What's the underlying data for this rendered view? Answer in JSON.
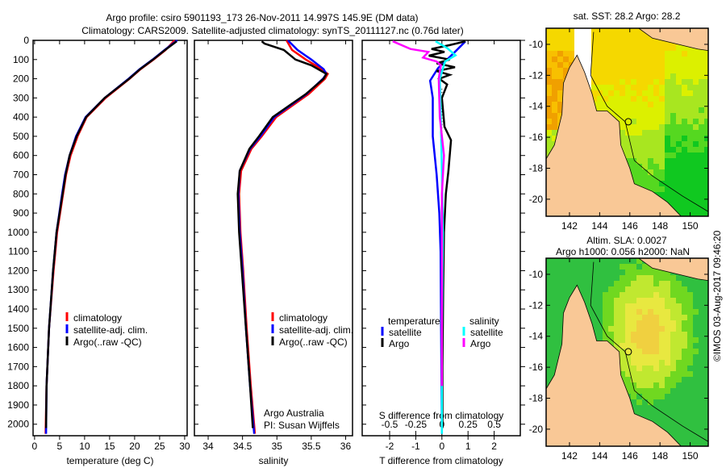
{
  "title_line1": "Argo profile: csiro 5901193_173 26-Nov-2011 14.997S 145.9E (DM data)",
  "title_line2": "Climatology: CARS2009. Satellite-adjusted climatology: synTS_20111127.nc (0.76d later)",
  "credit": "©IMOS 03-Aug-2017 09:46:20",
  "depth_ticks": [
    0,
    100,
    200,
    300,
    400,
    500,
    600,
    700,
    800,
    900,
    1000,
    1100,
    1200,
    1300,
    1400,
    1500,
    1600,
    1700,
    1800,
    1900,
    2000
  ],
  "chart_data": [
    {
      "type": "line",
      "id": "temperature",
      "xlabel": "temperature (deg C)",
      "ylabel": "depth",
      "xlim": [
        -0.3,
        30.5
      ],
      "ylim": [
        2060,
        0
      ],
      "xticks": [
        0,
        5,
        10,
        15,
        20,
        25,
        30
      ],
      "legend": [
        "climatology",
        "satellite-adj. clim.",
        "Argo(..raw -QC)"
      ],
      "legend_placement": "lower-center",
      "series": [
        {
          "name": "climatology",
          "color": "#ff0000",
          "depth": [
            0,
            50,
            100,
            150,
            200,
            300,
            400,
            500,
            600,
            700,
            800,
            1000,
            1200,
            1500,
            1800,
            2050
          ],
          "values": [
            28.0,
            26.2,
            23.8,
            21.2,
            19.0,
            14.2,
            10.4,
            8.6,
            7.2,
            6.3,
            5.7,
            4.5,
            3.8,
            2.9,
            2.4,
            2.2
          ]
        },
        {
          "name": "satellite-adj. clim.",
          "color": "#0000ff",
          "depth": [
            0,
            50,
            100,
            150,
            200,
            300,
            400,
            500,
            600,
            700,
            800,
            1000,
            1200,
            1500,
            1800,
            2050
          ],
          "values": [
            28.5,
            26.0,
            23.6,
            21.0,
            18.8,
            14.0,
            10.2,
            8.3,
            7.0,
            6.1,
            5.5,
            4.4,
            3.7,
            2.9,
            2.4,
            2.3
          ]
        },
        {
          "name": "Argo(..raw -QC)",
          "color": "#000000",
          "depth": [
            5,
            50,
            100,
            150,
            200,
            300,
            400,
            500,
            600,
            700,
            800,
            1000,
            1200,
            1500,
            1800,
            2020
          ],
          "values": [
            28.4,
            26.1,
            23.7,
            21.1,
            18.9,
            14.0,
            10.3,
            8.4,
            7.0,
            6.2,
            5.6,
            4.4,
            3.7,
            2.9,
            2.4,
            2.3
          ]
        }
      ]
    },
    {
      "type": "line",
      "id": "salinity",
      "xlabel": "salinity",
      "xlim": [
        33.8,
        36.1
      ],
      "ylim": [
        2060,
        0
      ],
      "xticks": [
        34,
        34.5,
        35,
        35.5,
        36
      ],
      "xticklabels": [
        "34",
        "34.5",
        "35",
        "35.5",
        "36"
      ],
      "legend": [
        "climatology",
        "satellite-adj. clim.",
        "Argo(..raw -QC)"
      ],
      "annotation": [
        "Argo Australia",
        "PI: Susan Wijffels"
      ],
      "series": [
        {
          "name": "climatology",
          "color": "#ff0000",
          "depth": [
            0,
            50,
            100,
            150,
            175,
            200,
            280,
            400,
            500,
            565,
            680,
            800,
            1000,
            1200,
            1500,
            1800,
            2050
          ],
          "values": [
            35.14,
            35.22,
            35.42,
            35.65,
            35.74,
            35.7,
            35.46,
            34.99,
            34.78,
            34.63,
            34.48,
            34.45,
            34.47,
            34.51,
            34.56,
            34.62,
            34.68
          ]
        },
        {
          "name": "satellite-adj. clim.",
          "color": "#0000ff",
          "depth": [
            0,
            50,
            100,
            150,
            175,
            200,
            280,
            400,
            500,
            565,
            680,
            800,
            1000,
            1200,
            1500,
            1800,
            2050
          ],
          "values": [
            35.16,
            35.3,
            35.5,
            35.68,
            35.72,
            35.67,
            35.43,
            34.96,
            34.76,
            34.61,
            34.46,
            34.44,
            34.46,
            34.5,
            34.55,
            34.61,
            34.67
          ]
        },
        {
          "name": "Argo(..raw -QC)",
          "color": "#000000",
          "depth": [
            5,
            17,
            50,
            100,
            130,
            175,
            200,
            280,
            400,
            500,
            565,
            680,
            800,
            1000,
            1200,
            1500,
            1800,
            2020
          ],
          "values": [
            34.78,
            34.82,
            35.1,
            35.27,
            35.5,
            35.72,
            35.68,
            35.42,
            34.94,
            34.74,
            34.6,
            34.46,
            34.43,
            34.45,
            34.49,
            34.55,
            34.61,
            34.65
          ]
        }
      ]
    },
    {
      "type": "line",
      "id": "differences",
      "xlabel": "T difference from climatology",
      "xlabel2": "S difference from climatology",
      "xlim": [
        -3.05,
        3.0
      ],
      "ylim": [
        2060,
        0
      ],
      "xticks": [
        -2,
        -1,
        0,
        1,
        2
      ],
      "sticks": [
        -0.5,
        -0.25,
        0,
        0.25,
        0.5
      ],
      "sticklabels": [
        "-0.5",
        "-0.25",
        "0",
        "0.25",
        "0.5"
      ],
      "legend_headers": [
        "temperature",
        "salinity"
      ],
      "legend": [
        "satellite",
        "Argo",
        "satellite",
        "Argo"
      ],
      "series": [
        {
          "name": "temperature satellite",
          "color": "#0000ff",
          "var": "T",
          "depth": [
            5,
            60,
            145,
            210,
            300,
            500,
            700,
            900,
            1100,
            1500,
            2050
          ],
          "values": [
            0.9,
            0.5,
            -0.15,
            -0.45,
            -0.35,
            -0.35,
            -0.2,
            -0.1,
            -0.05,
            -0.03,
            0.0
          ]
        },
        {
          "name": "temperature Argo",
          "color": "#000000",
          "var": "T",
          "depth": [
            5,
            25,
            45,
            60,
            80,
            100,
            120,
            140,
            160,
            180,
            200,
            230,
            300,
            450,
            520,
            600,
            680,
            800,
            1000,
            1300,
            1700,
            2020
          ],
          "values": [
            0.9,
            0.3,
            -0.4,
            0.1,
            -0.5,
            0.3,
            -0.2,
            0.5,
            -0.2,
            0.3,
            -0.1,
            0.2,
            0.0,
            0.1,
            0.35,
            0.3,
            0.25,
            0.15,
            0.08,
            0.05,
            0.02,
            0.02
          ]
        },
        {
          "name": "salinity satellite",
          "color": "#00ffff",
          "var": "S",
          "depth": [
            5,
            40,
            78,
            110,
            200,
            400,
            700,
            1000,
            1500,
            2050
          ],
          "values": [
            -0.06,
            0.05,
            0.13,
            0.03,
            -0.02,
            -0.01,
            0.0,
            0.01,
            0.0,
            0.0
          ]
        },
        {
          "name": "salinity Argo",
          "color": "#ff00ff",
          "var": "S",
          "depth": [
            5,
            45,
            60,
            90,
            110,
            130,
            200,
            400,
            600,
            800,
            1000,
            1400,
            1800
          ],
          "values": [
            -0.47,
            -0.3,
            -0.13,
            -0.18,
            -0.05,
            -0.01,
            -0.03,
            -0.02,
            0.02,
            0.0,
            0.0,
            0.0,
            0.0
          ]
        }
      ]
    }
  ],
  "maps": [
    {
      "title": "sat. SST: 28.2 Argo: 28.2",
      "subtitle": "",
      "xticks": [
        142,
        144,
        146,
        148,
        150
      ],
      "yticks": [
        -10,
        -12,
        -14,
        -16,
        -18,
        -20
      ],
      "variable": "SST"
    },
    {
      "title": "Altim. SLA: 0.0027",
      "subtitle": "Argo h1000: 0.056 h2000: NaN",
      "xticks": [
        142,
        144,
        146,
        148,
        150
      ],
      "yticks": [
        -10,
        -12,
        -14,
        -16,
        -18,
        -20
      ],
      "variable": "SLA"
    }
  ],
  "colors": {
    "land": "#f9c896"
  }
}
